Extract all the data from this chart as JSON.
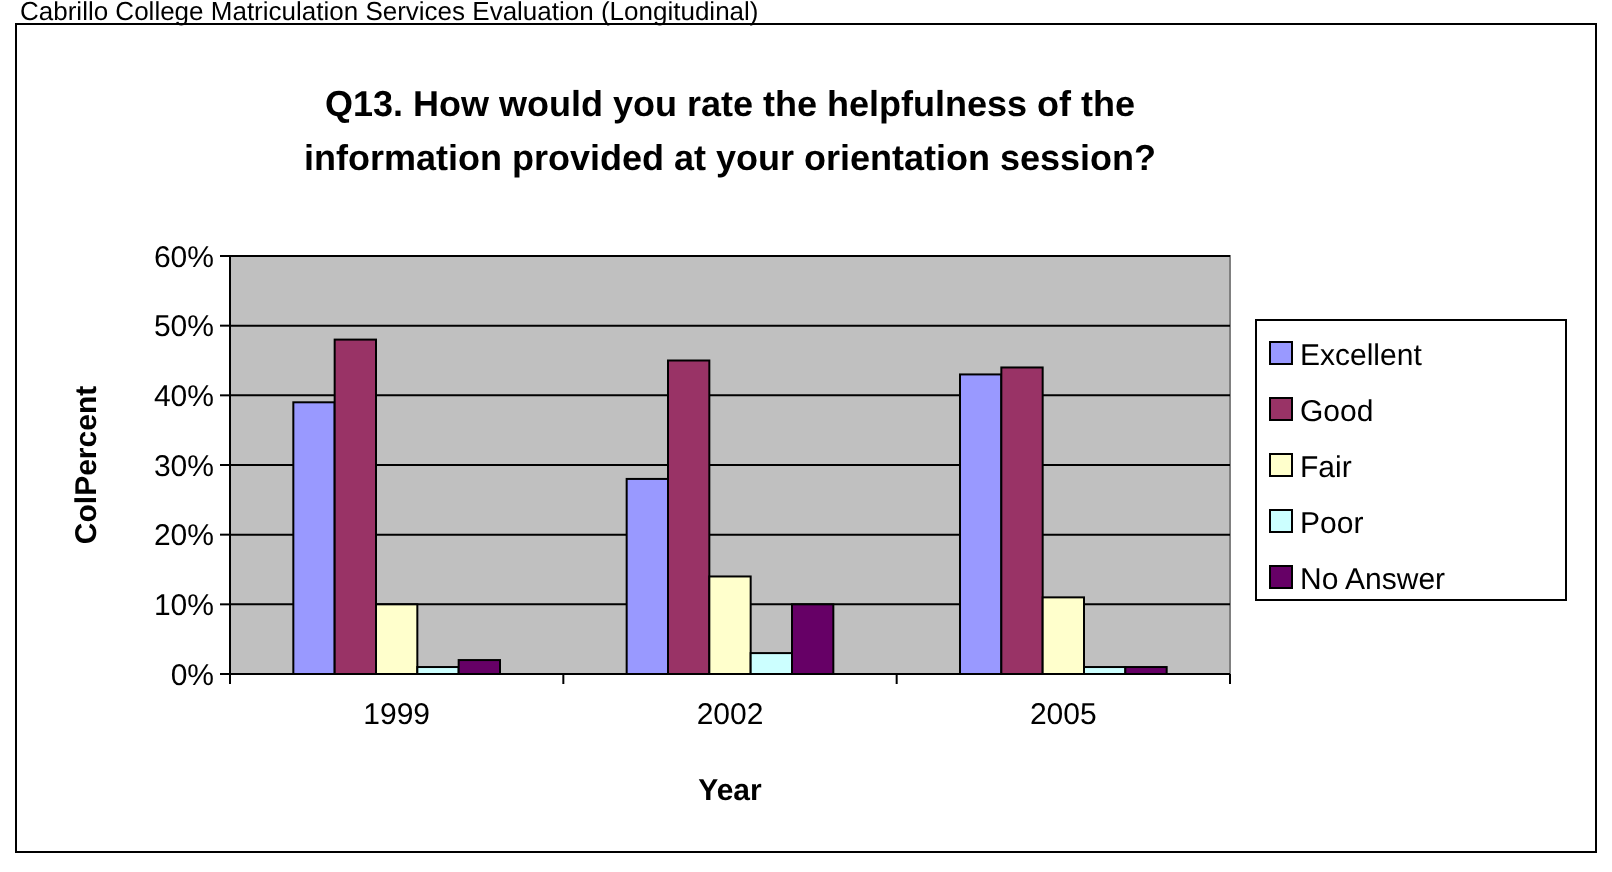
{
  "chart_data": {
    "type": "bar",
    "title": "Q13. How would you rate the helpfulness of the\ninformation provided at your orientation session?",
    "annotations": [
      "Cabrillo College Matriculation Services Evaluation (Longitudinal)"
    ],
    "xlabel": "Year",
    "ylabel": "ColPercent",
    "categories": [
      "1999",
      "2002",
      "2005"
    ],
    "series": [
      {
        "name": "Excellent",
        "color": "#9999ff",
        "values": [
          39,
          28,
          43
        ]
      },
      {
        "name": "Good",
        "color": "#993366",
        "values": [
          48,
          45,
          44
        ]
      },
      {
        "name": "Fair",
        "color": "#ffffcc",
        "values": [
          10,
          14,
          11
        ]
      },
      {
        "name": "Poor",
        "color": "#ccffff",
        "values": [
          1,
          3,
          1
        ]
      },
      {
        "name": "No Answer",
        "color": "#660066",
        "values": [
          2,
          10,
          1
        ]
      }
    ],
    "ylim": [
      0,
      60
    ],
    "yticks": [
      {
        "value": 0,
        "label": "0%"
      },
      {
        "value": 10,
        "label": "10%"
      },
      {
        "value": 20,
        "label": "20%"
      },
      {
        "value": 30,
        "label": "30%"
      },
      {
        "value": 40,
        "label": "40%"
      },
      {
        "value": 50,
        "label": "50%"
      },
      {
        "value": 60,
        "label": "60%"
      }
    ],
    "grid": "y",
    "legend": "right"
  }
}
